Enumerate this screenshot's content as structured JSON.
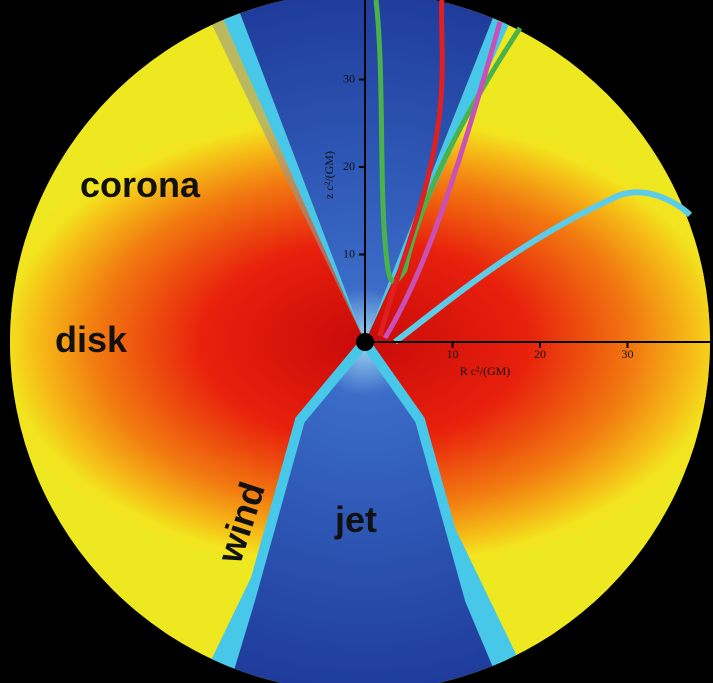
{
  "labels": {
    "corona": "corona",
    "disk": "disk",
    "wind": "wind",
    "jet": "jet"
  },
  "axes": {
    "z": {
      "label": "z c²/(GM)",
      "ticks": [
        10,
        20,
        30
      ]
    },
    "r": {
      "label": "R c²/(GM)",
      "ticks": [
        10,
        20,
        30
      ]
    }
  }
}
